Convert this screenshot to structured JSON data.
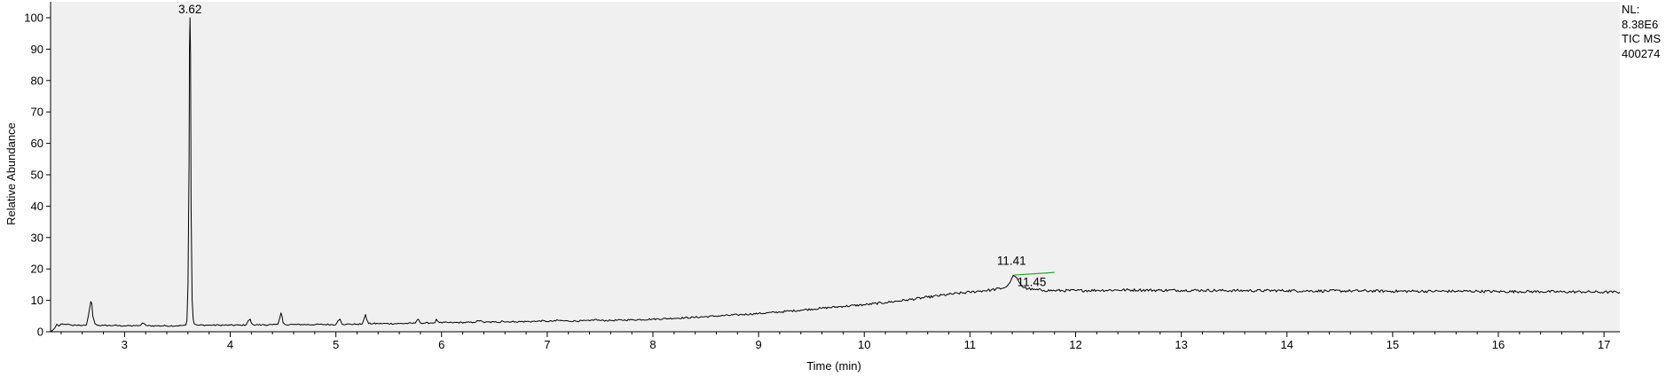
{
  "info": {
    "nl_label": "NL:",
    "nl_value": "8.38E6",
    "scan_filter": "TIC  MS",
    "sample_id": "400274"
  },
  "chart_data": {
    "type": "line",
    "xlabel": "Time (min)",
    "ylabel": "Relative Abundance",
    "xlim": [
      2.3,
      17.15
    ],
    "ylim": [
      0,
      100
    ],
    "xticks": [
      3,
      4,
      5,
      6,
      7,
      8,
      9,
      10,
      11,
      12,
      13,
      14,
      15,
      16,
      17
    ],
    "yticks": [
      0,
      10,
      20,
      30,
      40,
      50,
      60,
      70,
      80,
      90,
      100
    ],
    "grid": false,
    "colors": {
      "trace": "#000000",
      "plot_background": "#f0f0f0",
      "integration_baseline": "#22aa22"
    },
    "peak_labels": [
      {
        "time": 3.62,
        "text": "3.62"
      },
      {
        "time": 11.41,
        "text": "11.41"
      },
      {
        "time": 11.45,
        "text": "11.45"
      }
    ],
    "series": [
      {
        "x": [
          2.3,
          2.32,
          2.34,
          2.36,
          2.38,
          2.4,
          2.45,
          2.5,
          2.55,
          2.6,
          2.64,
          2.66,
          2.68,
          2.69,
          2.7,
          2.72,
          2.74,
          2.8,
          2.9,
          3.0,
          3.1,
          3.15,
          3.17,
          3.19,
          3.2,
          3.22,
          3.3,
          3.4,
          3.5,
          3.55,
          3.58,
          3.59,
          3.6,
          3.61,
          3.615,
          3.62,
          3.625,
          3.63,
          3.64,
          3.65,
          3.66,
          3.68,
          3.7,
          3.8,
          3.9,
          4.0,
          4.1,
          4.15,
          4.17,
          4.19,
          4.2,
          4.22,
          4.3,
          4.4,
          4.45,
          4.47,
          4.48,
          4.49,
          4.5,
          4.52,
          4.6,
          4.8,
          5.0,
          5.02,
          5.04,
          5.05,
          5.06,
          5.1,
          5.2,
          5.25,
          5.27,
          5.28,
          5.29,
          5.31,
          5.4,
          5.6,
          5.75,
          5.77,
          5.78,
          5.8,
          5.9,
          5.94,
          5.95,
          5.96,
          5.98,
          6.1,
          6.3,
          6.37,
          6.38,
          6.4,
          6.5,
          6.56,
          6.57,
          6.59,
          6.7,
          6.9,
          6.93,
          7.0,
          7.08,
          7.09,
          7.11,
          7.2,
          7.4,
          7.45,
          7.5,
          7.6,
          7.8,
          8.0,
          8.2,
          8.4,
          8.6,
          8.8,
          9.0,
          9.2,
          9.4,
          9.6,
          9.8,
          10.0,
          10.2,
          10.4,
          10.6,
          10.8,
          11.0,
          11.1,
          11.2,
          11.3,
          11.35,
          11.38,
          11.41,
          11.44,
          11.47,
          11.5,
          11.55,
          11.6,
          11.7,
          11.8,
          12.0,
          12.2,
          12.4,
          12.6,
          12.8,
          13.0,
          13.2,
          13.4,
          13.6,
          13.8,
          14.0,
          14.2,
          14.4,
          14.6,
          14.8,
          15.0,
          15.2,
          15.4,
          15.6,
          15.8,
          16.0,
          16.2,
          16.4,
          16.6,
          16.8,
          17.0,
          17.15
        ],
        "y": [
          0.0,
          0.5,
          1.2,
          2.4,
          1.8,
          2.5,
          2.3,
          2.1,
          2.0,
          2.0,
          2.2,
          5.5,
          9.6,
          9.0,
          5.0,
          2.6,
          2.1,
          2.0,
          2.0,
          1.9,
          1.9,
          2.0,
          2.8,
          2.5,
          2.1,
          1.9,
          1.9,
          1.9,
          1.9,
          2.0,
          2.2,
          3.5,
          15.0,
          53.0,
          90.0,
          100.0,
          88.0,
          40.0,
          10.0,
          4.0,
          2.5,
          2.2,
          2.1,
          2.1,
          2.1,
          2.1,
          2.1,
          2.2,
          3.5,
          4.0,
          2.8,
          2.2,
          2.2,
          2.2,
          2.3,
          4.5,
          6.0,
          5.0,
          2.9,
          2.3,
          2.3,
          2.3,
          2.3,
          3.5,
          4.0,
          3.0,
          2.4,
          2.4,
          2.4,
          2.5,
          4.5,
          5.5,
          4.0,
          2.6,
          2.6,
          2.6,
          2.7,
          3.8,
          4.0,
          2.8,
          2.8,
          3.0,
          4.0,
          3.5,
          2.9,
          2.9,
          3.0,
          3.6,
          3.4,
          3.0,
          3.1,
          3.1,
          3.5,
          3.2,
          3.2,
          3.3,
          3.5,
          3.3,
          3.4,
          3.8,
          3.6,
          3.4,
          3.5,
          3.9,
          3.6,
          3.6,
          3.8,
          4.0,
          4.3,
          4.6,
          5.0,
          5.4,
          5.8,
          6.3,
          6.9,
          7.5,
          8.1,
          8.6,
          9.3,
          10.1,
          11.0,
          11.9,
          12.6,
          13.0,
          13.3,
          13.8,
          14.5,
          15.8,
          18.0,
          17.3,
          15.5,
          14.2,
          13.7,
          13.4,
          13.2,
          13.1,
          13.1,
          13.2,
          13.3,
          13.3,
          13.2,
          13.2,
          13.2,
          13.1,
          13.1,
          13.1,
          13.1,
          13.0,
          13.0,
          13.0,
          13.0,
          12.9,
          12.9,
          12.9,
          12.9,
          12.9,
          12.8,
          12.8,
          12.8,
          12.7,
          12.7,
          12.6,
          12.6
        ]
      }
    ]
  }
}
